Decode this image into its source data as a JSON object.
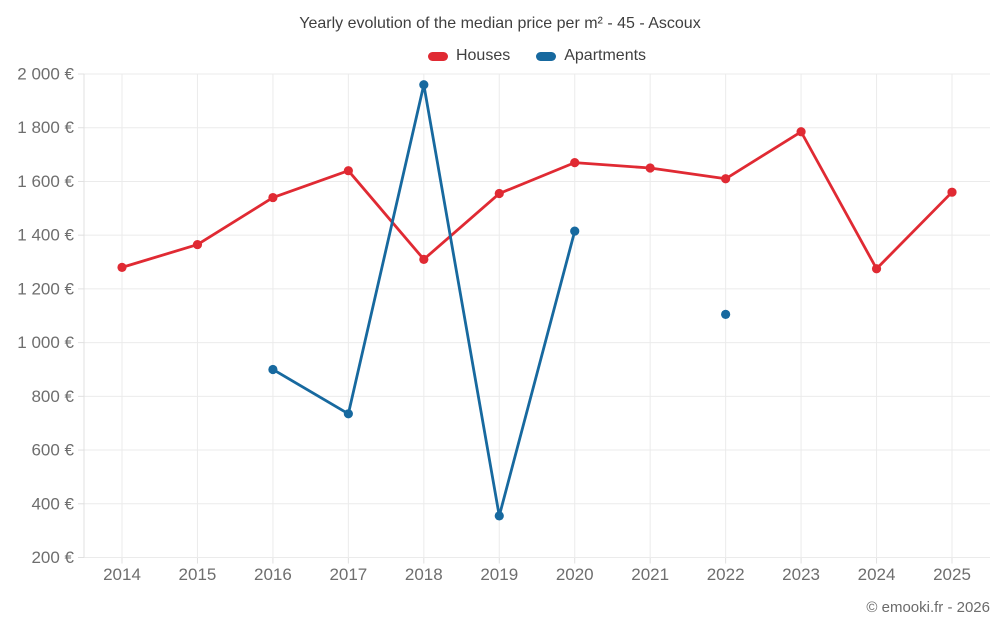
{
  "header": {
    "title": "Yearly evolution of the median price per m² - 45 - Ascoux",
    "legend": [
      {
        "label": "Houses",
        "color": "#e02a33"
      },
      {
        "label": "Apartments",
        "color": "#17699f"
      }
    ]
  },
  "footer": {
    "credit": "© emooki.fr - 2026"
  },
  "chart_data": {
    "type": "line",
    "title": "Yearly evolution of the median price per m² - 45 - Ascoux",
    "categories": [
      "2014",
      "2015",
      "2016",
      "2017",
      "2018",
      "2019",
      "2020",
      "2021",
      "2022",
      "2023",
      "2024",
      "2025"
    ],
    "series": [
      {
        "name": "Houses",
        "color": "#e02a33",
        "values": [
          1280,
          1365,
          1540,
          1640,
          1310,
          1555,
          1670,
          1650,
          1610,
          1785,
          1275,
          1560
        ]
      },
      {
        "name": "Apartments",
        "color": "#17699f",
        "values": [
          null,
          null,
          900,
          735,
          1960,
          355,
          1415,
          null,
          1105,
          null,
          null,
          null
        ]
      }
    ],
    "xlabel": "",
    "ylabel": "",
    "ylim": [
      200,
      2000
    ],
    "ytick_step": 200,
    "ytick_suffix": " €",
    "grid": true,
    "legend_position": "top",
    "grid_color": "#ebebeb",
    "axis_color": "#e0e0e0",
    "label_color": "#6e6e6e"
  }
}
